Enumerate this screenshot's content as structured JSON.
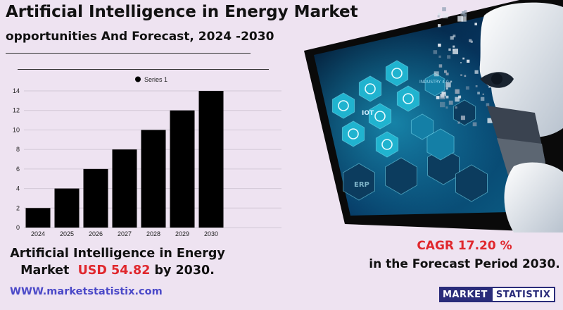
{
  "title": "Artificial Intelligence in Energy Market",
  "subtitle": "opportunities And Forecast, 2024 -2030",
  "headline": {
    "line1": "Artificial Intelligence in Energy",
    "line2_prefix": "Market",
    "value": "USD 54.82",
    "line2_suffix": "by 2030."
  },
  "cagr": {
    "value": "CAGR 17.20 %",
    "period": "in the  Forecast Period  2030."
  },
  "website": "WWW.marketstatistix.com",
  "logo": {
    "part1": "MARKET",
    "part2": "STATISTIX"
  },
  "art_labels": [
    "IOT",
    "ERP",
    "INDUSTRY 4.0"
  ],
  "colors": {
    "background": "#eee3f1",
    "bars": "#000000",
    "accent_red": "#e0272d",
    "link_blue": "#4b49c8",
    "logo_navy": "#2a2c7a",
    "tablet_teal": "#20b3cf"
  },
  "chart_data": {
    "type": "bar",
    "categories": [
      "2024",
      "2025",
      "2026",
      "2027",
      "2028",
      "2029",
      "2030"
    ],
    "series": [
      {
        "name": "Series 1",
        "values": [
          2,
          4,
          6,
          8,
          10,
          12,
          14
        ]
      }
    ],
    "yticks": [
      0,
      2,
      4,
      6,
      8,
      10,
      12,
      14
    ],
    "ylim": [
      0,
      14
    ],
    "grid": true,
    "legend": "top-center"
  }
}
